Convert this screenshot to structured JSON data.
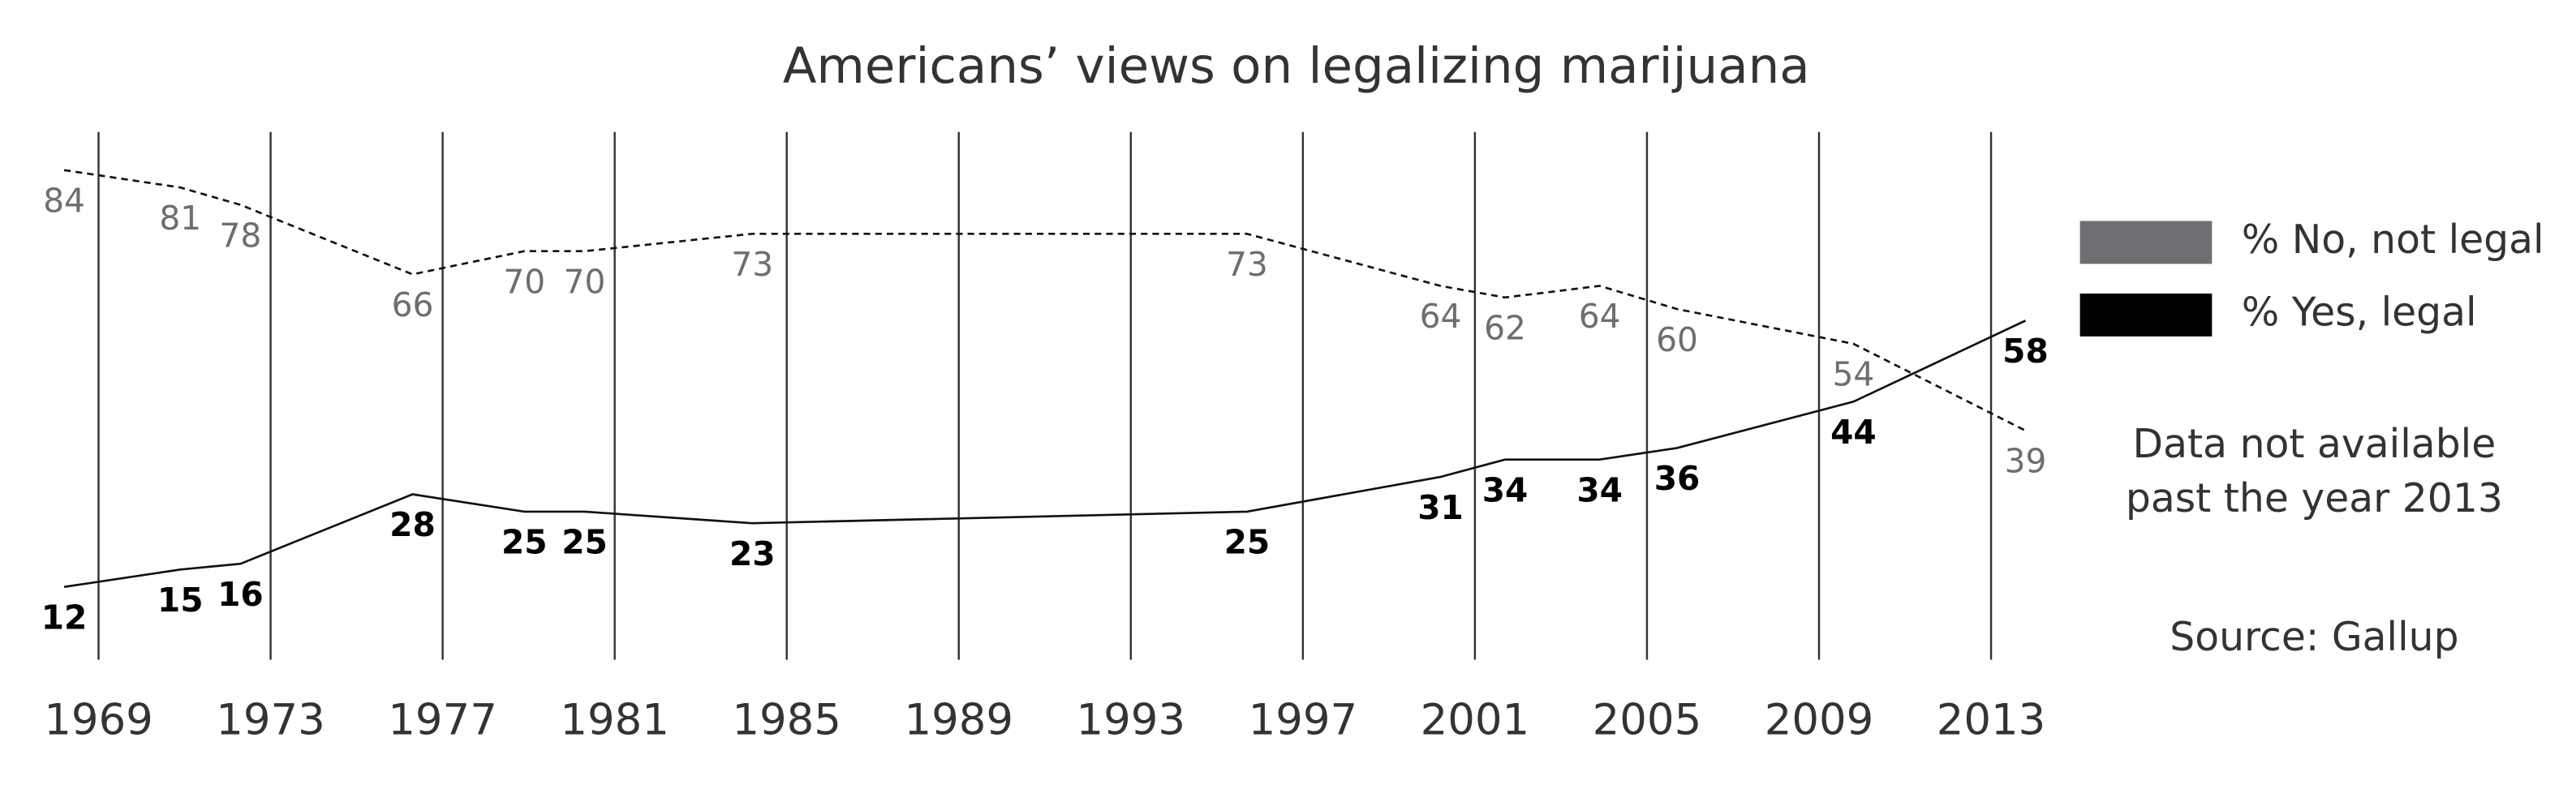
{
  "chart_data": {
    "type": "line",
    "title": "Americans’ views on legalizing marijuana",
    "x": [
      1968.2,
      1970.9,
      1972.3,
      1976.3,
      1978.9,
      1980.3,
      1984.2,
      1995.7,
      2000.2,
      2001.7,
      2003.9,
      2005.7,
      2009.8,
      2013.8
    ],
    "series": [
      {
        "name": "% No, not legal",
        "color": "#6d6e71",
        "line_style": "dashed",
        "values": [
          84,
          81,
          78,
          66,
          70,
          70,
          73,
          73,
          64,
          62,
          64,
          60,
          54,
          39
        ]
      },
      {
        "name": "% Yes, legal",
        "color": "#000000",
        "line_style": "solid",
        "values": [
          12,
          15,
          16,
          28,
          25,
          25,
          23,
          25,
          31,
          34,
          34,
          36,
          44,
          58
        ]
      }
    ],
    "xlim": [
      1967.5,
      2014.3
    ],
    "xticks": [
      1969,
      1973,
      1977,
      1981,
      1985,
      1989,
      1993,
      1997,
      2001,
      2005,
      2009,
      2013
    ],
    "ylim": [
      0,
      100
    ],
    "grid": true,
    "notes": [
      "Data not available",
      "past the year 2013",
      "Source: Gallup"
    ]
  }
}
